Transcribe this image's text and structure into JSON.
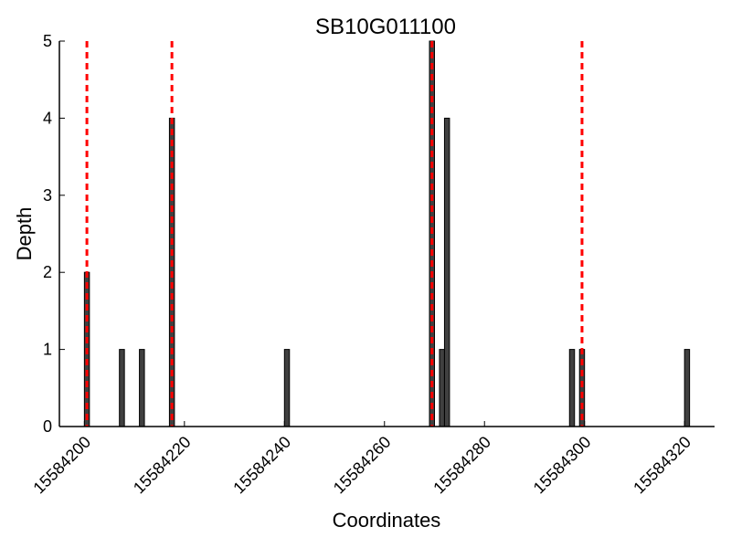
{
  "chart_data": {
    "type": "bar",
    "title": "SB10G011100",
    "xlabel": "Coordinates",
    "ylabel": "Depth",
    "xlim": [
      15584195,
      15584326
    ],
    "ylim": [
      0,
      5
    ],
    "x_ticks": [
      15584200,
      15584220,
      15584240,
      15584260,
      15584280,
      15584300,
      15584320
    ],
    "y_ticks": [
      0,
      1,
      2,
      3,
      4,
      5
    ],
    "bars": [
      {
        "x": 15584200.5,
        "y": 2
      },
      {
        "x": 15584207.5,
        "y": 1
      },
      {
        "x": 15584211.5,
        "y": 1
      },
      {
        "x": 15584217.5,
        "y": 4
      },
      {
        "x": 15584240.5,
        "y": 1
      },
      {
        "x": 15584269.5,
        "y": 5
      },
      {
        "x": 15584271.5,
        "y": 1
      },
      {
        "x": 15584272.5,
        "y": 4
      },
      {
        "x": 15584297.5,
        "y": 1
      },
      {
        "x": 15584299.5,
        "y": 1
      },
      {
        "x": 15584320.5,
        "y": 1
      }
    ],
    "bar_width": 1,
    "vlines": [
      15584200.5,
      15584217.5,
      15584269.5,
      15584299.5
    ],
    "colors": {
      "bar_fill": "#404040",
      "bar_edge": "#000000",
      "vline": "#ff0000",
      "axis": "#000000"
    },
    "grid": false,
    "legend": "none"
  }
}
